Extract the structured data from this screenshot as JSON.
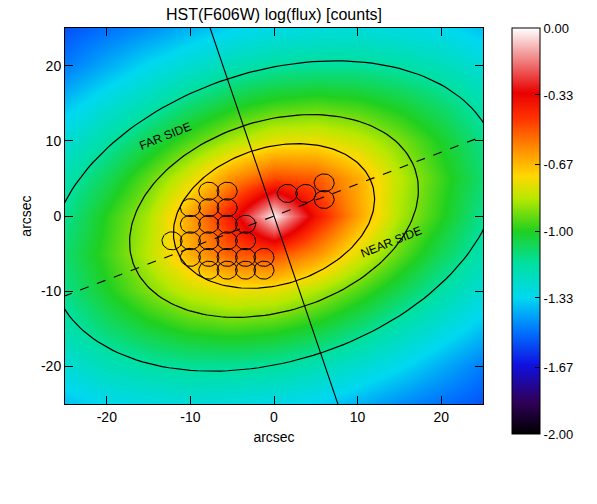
{
  "chart_data": {
    "type": "heatmap",
    "title": "HST(F606W) log(flux) [counts]",
    "x_label": "arcsec",
    "y_label": "arcsec",
    "xlim": [
      -25,
      25
    ],
    "ylim": [
      -25,
      25
    ],
    "xticks": [
      -20,
      -10,
      0,
      10,
      20
    ],
    "yticks": [
      -20,
      -10,
      0,
      10,
      20
    ],
    "x": [
      -25,
      -20,
      -15,
      -10,
      -5,
      0,
      5,
      10,
      15,
      20,
      25
    ],
    "y": [
      -25,
      -20,
      -15,
      -10,
      -5,
      0,
      5,
      10,
      15,
      20,
      25
    ],
    "cells": [
      [
        -1.37,
        -1.32,
        -1.3,
        -1.28,
        -1.29,
        -1.31,
        -1.34,
        -1.39,
        -1.45,
        -1.5,
        -1.55
      ],
      [
        -1.27,
        -1.21,
        -1.17,
        -1.15,
        -1.15,
        -1.16,
        -1.2,
        -1.26,
        -1.32,
        -1.4,
        -1.48
      ],
      [
        -1.19,
        -1.1,
        -1.03,
        -0.98,
        -0.96,
        -0.98,
        -1.03,
        -1.11,
        -1.2,
        -1.28,
        -1.37
      ],
      [
        -1.13,
        -1.01,
        -0.9,
        -0.81,
        -0.76,
        -0.77,
        -0.85,
        -0.95,
        -1.06,
        -1.17,
        -1.27
      ],
      [
        -1.1,
        -0.97,
        -0.83,
        -0.65,
        -0.51,
        -0.48,
        -0.6,
        -0.78,
        -0.93,
        -1.07,
        -1.19
      ],
      [
        -1.14,
        -0.99,
        -0.85,
        -0.63,
        -0.37,
        -0.02,
        -0.37,
        -0.63,
        -0.85,
        -0.99,
        -1.14
      ],
      [
        -1.19,
        -1.07,
        -0.93,
        -0.78,
        -0.6,
        -0.48,
        -0.51,
        -0.65,
        -0.83,
        -0.97,
        -1.1
      ],
      [
        -1.27,
        -1.17,
        -1.06,
        -0.95,
        -0.85,
        -0.77,
        -0.76,
        -0.81,
        -0.9,
        -1.01,
        -1.13
      ],
      [
        -1.37,
        -1.28,
        -1.2,
        -1.11,
        -1.03,
        -0.98,
        -0.96,
        -0.98,
        -1.03,
        -1.1,
        -1.19
      ],
      [
        -1.48,
        -1.4,
        -1.32,
        -1.26,
        -1.2,
        -1.16,
        -1.15,
        -1.15,
        -1.17,
        -1.21,
        -1.27
      ],
      [
        -1.55,
        -1.5,
        -1.45,
        -1.39,
        -1.34,
        -1.31,
        -1.29,
        -1.28,
        -1.3,
        -1.32,
        -1.37
      ]
    ],
    "zlim": [
      -2,
      0
    ],
    "zticks": [
      {
        "value": -2,
        "label": "-2.00"
      },
      -1.67,
      -1.33,
      {
        "value": -1,
        "label": "-1.00"
      },
      -0.67,
      -0.33,
      {
        "value": 0,
        "label": "0.00"
      }
    ],
    "ellipses": {
      "center": [
        0,
        0
      ],
      "position_angle": 23,
      "semi_major": [
        12.5,
        18,
        28
      ],
      "semi_minor": [
        9,
        12.5,
        19
      ]
    },
    "axis_lines": [
      {
        "angle": 23,
        "line_style": "dashed"
      },
      {
        "angle": 107,
        "line_style": "solid"
      }
    ],
    "circles": {
      "radius": 1.2,
      "x": [
        -7.8,
        -5.6,
        -10,
        -7.8,
        -5.6,
        -10,
        -7.8,
        -5.6,
        -3.4,
        -12.2,
        -10,
        -7.8,
        -5.6,
        -3.4,
        -10,
        -7.8,
        -5.6,
        -3.4,
        -1.2,
        -7.8,
        -5.6,
        -3.4,
        -1.2,
        1.6,
        3.8,
        6.0,
        6.0
      ],
      "y": [
        3.3,
        3.3,
        1.1,
        1.1,
        1.1,
        -1.1,
        -1.1,
        -1.1,
        -1.1,
        -3.3,
        -3.3,
        -3.3,
        -3.3,
        -3.3,
        -5.5,
        -5.5,
        -5.5,
        -5.5,
        -5.5,
        -7.2,
        -7.2,
        -7.2,
        -7.2,
        3.0,
        3.0,
        4.4,
        2.2
      ]
    },
    "annotations": [
      {
        "text": "FAR SIDE",
        "x": -13,
        "y": 10.6
      },
      {
        "text": "NEAR SIDE",
        "x": 14,
        "y": -3.5
      }
    ]
  }
}
